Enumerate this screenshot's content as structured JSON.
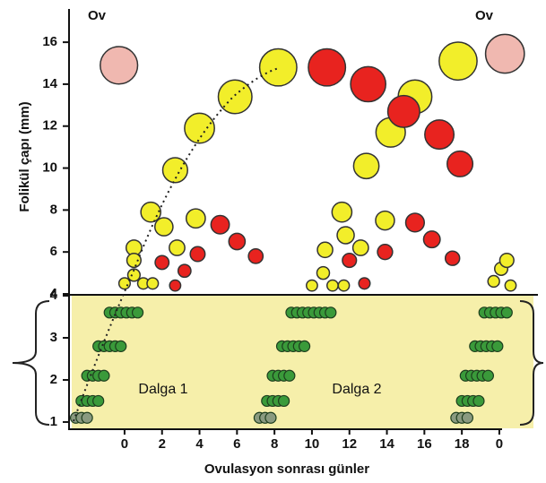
{
  "chart_data": [
    {
      "type": "scatter",
      "y_title": "Folikül çapı (mm)",
      "xlim": [
        -2.82,
        22.06
      ],
      "ylim": [
        4,
        17.5
      ],
      "yticks": [
        4,
        6,
        8,
        10,
        12,
        14,
        16
      ],
      "annotations": [
        "Ov",
        "Ov"
      ],
      "series": [
        {
          "color": "#f2ee2a",
          "x": [
            0.5,
            1.4,
            2.7,
            4.0,
            5.9,
            8.2,
            2.1,
            2.8,
            3.8,
            0,
            0.5,
            1.0,
            1.5,
            0.5,
            12.9,
            14.2,
            15.5,
            17.8,
            11.6,
            11.8,
            12.6,
            13.9,
            10,
            10.6,
            11.1,
            11.7,
            10.7,
            19.7,
            20.1,
            20.4,
            20.6
          ],
          "values": [
            6.2,
            7.9,
            9.9,
            11.9,
            13.4,
            14.8,
            7.2,
            6.2,
            7.6,
            4.5,
            4.9,
            4.5,
            4.5,
            5.6,
            10.1,
            11.7,
            13.4,
            15.1,
            7.9,
            6.8,
            6.2,
            7.5,
            4.4,
            5.0,
            4.4,
            4.4,
            6.1,
            4.6,
            5.2,
            5.6,
            4.4
          ]
        },
        {
          "color": "#e8231f",
          "x": [
            10.8,
            13.0,
            14.9,
            16.8,
            17.9,
            2.0,
            3.2,
            3.9,
            5.1,
            6.0,
            7.0,
            2.7,
            12.0,
            12.8,
            13.9,
            15.5,
            16.4,
            17.5
          ],
          "values": [
            14.8,
            14.0,
            12.7,
            11.6,
            10.2,
            5.5,
            5.1,
            5.9,
            7.3,
            6.5,
            5.8,
            4.4,
            5.6,
            4.5,
            6.0,
            7.4,
            6.6,
            5.7
          ]
        },
        {
          "color": "#f0b8b0",
          "x": [
            -0.3,
            20.3
          ],
          "values": [
            14.9,
            15.45
          ]
        }
      ]
    },
    {
      "type": "scatter",
      "x_title": "Ovulasyon sonrası günler",
      "xlim": [
        -2.82,
        22.06
      ],
      "ylim": [
        0.85,
        4
      ],
      "yticks": [
        1,
        2,
        3,
        4
      ],
      "xticks": [
        0,
        2,
        4,
        6,
        8,
        10,
        12,
        14,
        16,
        18,
        {
          "value": 20,
          "label": "0"
        }
      ],
      "annotations": [
        "Dalga 1",
        "Dalga 2"
      ],
      "series": [
        {
          "color": "#8a9a80",
          "x": [
            -2.6,
            -2.3,
            -2.0,
            7.2,
            7.5,
            7.8,
            17.7,
            18.0,
            18.3
          ],
          "values": [
            1.1,
            1.1,
            1.1,
            1.1,
            1.1,
            1.1,
            1.1,
            1.1,
            1.1
          ]
        },
        {
          "color": "#3a9a3a",
          "x": [
            -2.3,
            -2.0,
            -1.7,
            -1.4,
            -2.0,
            -1.7,
            -1.4,
            -1.1,
            -1.4,
            -1.1,
            -0.8,
            -0.5,
            -0.2,
            -0.8,
            -0.5,
            -0.2,
            0.1,
            0.4,
            0.7,
            7.6,
            7.9,
            8.2,
            8.5,
            7.9,
            8.2,
            8.5,
            8.8,
            8.4,
            8.7,
            9.0,
            9.3,
            9.6,
            8.9,
            9.2,
            9.5,
            9.8,
            10.1,
            10.4,
            10.7,
            11.0,
            18.0,
            18.3,
            18.6,
            18.9,
            18.2,
            18.5,
            18.8,
            19.1,
            19.4,
            18.7,
            19.0,
            19.3,
            19.6,
            19.9,
            19.2,
            19.5,
            19.8,
            20.1,
            20.4
          ],
          "values": [
            1.5,
            1.5,
            1.5,
            1.5,
            2.1,
            2.1,
            2.1,
            2.1,
            2.8,
            2.8,
            2.8,
            2.8,
            2.8,
            3.6,
            3.6,
            3.6,
            3.6,
            3.6,
            3.6,
            1.5,
            1.5,
            1.5,
            1.5,
            2.1,
            2.1,
            2.1,
            2.1,
            2.8,
            2.8,
            2.8,
            2.8,
            2.8,
            3.6,
            3.6,
            3.6,
            3.6,
            3.6,
            3.6,
            3.6,
            3.6,
            1.5,
            1.5,
            1.5,
            1.5,
            2.1,
            2.1,
            2.1,
            2.1,
            2.1,
            2.8,
            2.8,
            2.8,
            2.8,
            2.8,
            3.6,
            3.6,
            3.6,
            3.6,
            3.6
          ]
        }
      ]
    }
  ]
}
